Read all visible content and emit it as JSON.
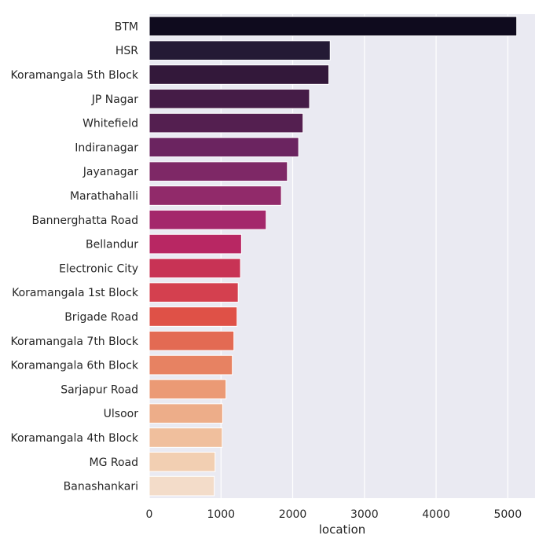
{
  "chart_data": {
    "type": "bar",
    "orientation": "horizontal",
    "title": "",
    "xlabel": "location",
    "ylabel": "",
    "xlim": [
      0,
      5380
    ],
    "xticks": [
      0,
      1000,
      2000,
      3000,
      4000,
      5000
    ],
    "grid": true,
    "legend": "none",
    "background": "#eaeaf2",
    "categories": [
      "BTM",
      "HSR",
      "Koramangala 5th Block",
      "JP Nagar",
      "Whitefield",
      "Indiranagar",
      "Jayanagar",
      "Marathahalli",
      "Bannerghatta Road",
      "Bellandur",
      "Electronic City",
      "Koramangala 1st Block",
      "Brigade Road",
      "Koramangala 7th Block",
      "Koramangala 6th Block",
      "Sarjapur Road",
      "Ulsoor",
      "Koramangala 4th Block",
      "MG Road",
      "Banashankari"
    ],
    "values": [
      5124,
      2523,
      2504,
      2235,
      2144,
      2083,
      1926,
      1842,
      1630,
      1286,
      1272,
      1240,
      1224,
      1180,
      1158,
      1070,
      1023,
      1017,
      918,
      906
    ],
    "colors": [
      "#0f0b1e",
      "#241a35",
      "#33183a",
      "#451c47",
      "#541f50",
      "#6b2460",
      "#7e2866",
      "#912a6a",
      "#a4286b",
      "#b82763",
      "#c83355",
      "#d4404f",
      "#df5147",
      "#e36a53",
      "#e78262",
      "#eb9a75",
      "#edad89",
      "#f0bf9d",
      "#f2cfb2",
      "#f3dcc9"
    ]
  }
}
